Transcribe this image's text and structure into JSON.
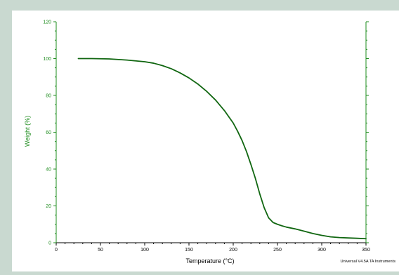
{
  "colors": {
    "frame_background": "#c9d9d0",
    "plot_background": "#ffffff",
    "axis": "#1e8c1e",
    "series": "#106610",
    "text": "#000000"
  },
  "chart_data": {
    "type": "line",
    "title": "",
    "xlabel": "Temperature (°C)",
    "ylabel": "Weight (%)",
    "xlim": [
      0,
      350
    ],
    "ylim": [
      0,
      120
    ],
    "xticks": [
      0,
      50,
      100,
      150,
      200,
      250,
      300,
      350
    ],
    "yticks": [
      0,
      20,
      40,
      60,
      80,
      100,
      120
    ],
    "grid": false,
    "legend": "none",
    "footer_text": "Universal V4.5A TA Instruments",
    "series": [
      {
        "x": [
          25,
          40,
          60,
          80,
          100,
          110,
          120,
          130,
          140,
          150,
          160,
          170,
          180,
          190,
          200,
          205,
          210,
          215,
          220,
          225,
          230,
          235,
          240,
          245,
          250,
          255,
          260,
          270,
          280,
          290,
          300,
          310,
          320,
          330,
          340,
          350
        ],
        "values": [
          100,
          100,
          99.8,
          99.2,
          98.3,
          97.5,
          96.2,
          94.5,
          92.2,
          89.5,
          86.2,
          82.2,
          77.5,
          71.8,
          65,
          60.5,
          55.5,
          49.5,
          42.5,
          35,
          26.5,
          19,
          13.5,
          11,
          10,
          9.2,
          8.5,
          7.5,
          6.3,
          5,
          4,
          3.2,
          2.8,
          2.6,
          2.4,
          2.2
        ]
      }
    ]
  }
}
